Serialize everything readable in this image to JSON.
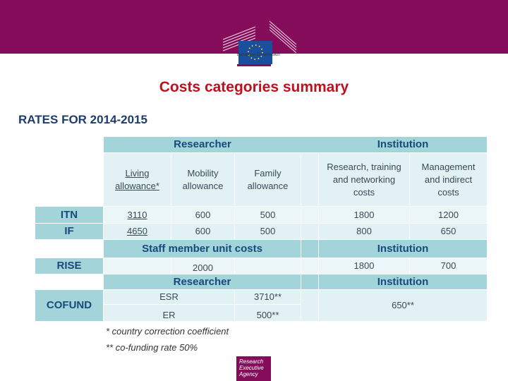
{
  "header": {
    "logo_text": "European Commission"
  },
  "title": "Costs categories summary",
  "subtitle": "RATES FOR 2014-2015",
  "table": {
    "group_researcher": "Researcher",
    "group_institution": "Institution",
    "columns": [
      "Living allowance*",
      "Mobility allowance",
      "Family allowance",
      "Research, training and networking costs",
      "Management and indirect costs"
    ],
    "itn": {
      "label": "ITN",
      "values": [
        "3110",
        "600",
        "500",
        "1800",
        "1200"
      ]
    },
    "if": {
      "label": "IF",
      "values": [
        "4650",
        "600",
        "500",
        "800",
        "650"
      ]
    },
    "staff_header": "Staff member unit costs",
    "institution_header2": "Institution",
    "rise": {
      "label": "RISE",
      "staff": "2000",
      "inst1": "1800",
      "inst2": "700"
    },
    "researcher_header2": "Researcher",
    "institution_header3": "Institution",
    "cofund": {
      "label": "COFUND",
      "esr_label": "ESR",
      "esr_value": "3710**",
      "er_label": "ER",
      "er_value": "500**",
      "institution": "650**"
    }
  },
  "notes": [
    "* country correction coefficient",
    "** co-funding rate 50%"
  ],
  "footer_logo": "Research Executive Agency",
  "colors": {
    "banner": "#850c5a",
    "header": "#a3d4da",
    "title": "#c0101e"
  }
}
